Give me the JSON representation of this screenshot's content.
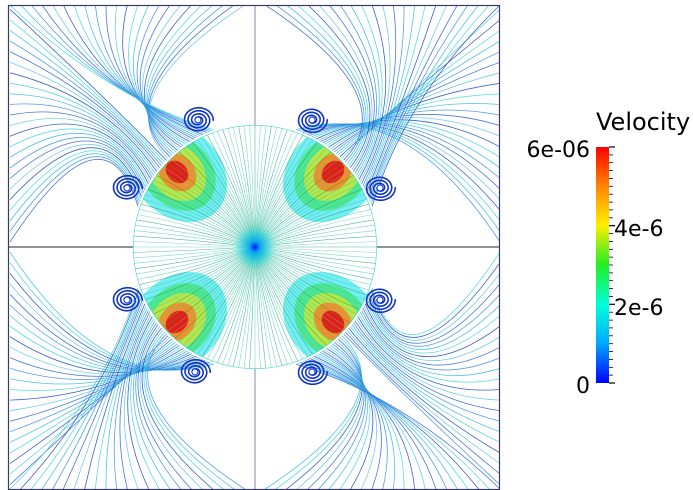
{
  "colorbar": {
    "title": "Velocity",
    "max_label": "6e-06",
    "tick_4": "4e-6",
    "tick_2": "2e-6",
    "min_label": "0",
    "range": [
      0,
      6e-06
    ],
    "colormap": [
      "#0000ff",
      "#00aaff",
      "#00ffdd",
      "#22ee22",
      "#ffee00",
      "#ff8800",
      "#ff0000"
    ]
  },
  "plot": {
    "frame_color": "#3a3a6a",
    "vortex_color": "#1035c8"
  }
}
